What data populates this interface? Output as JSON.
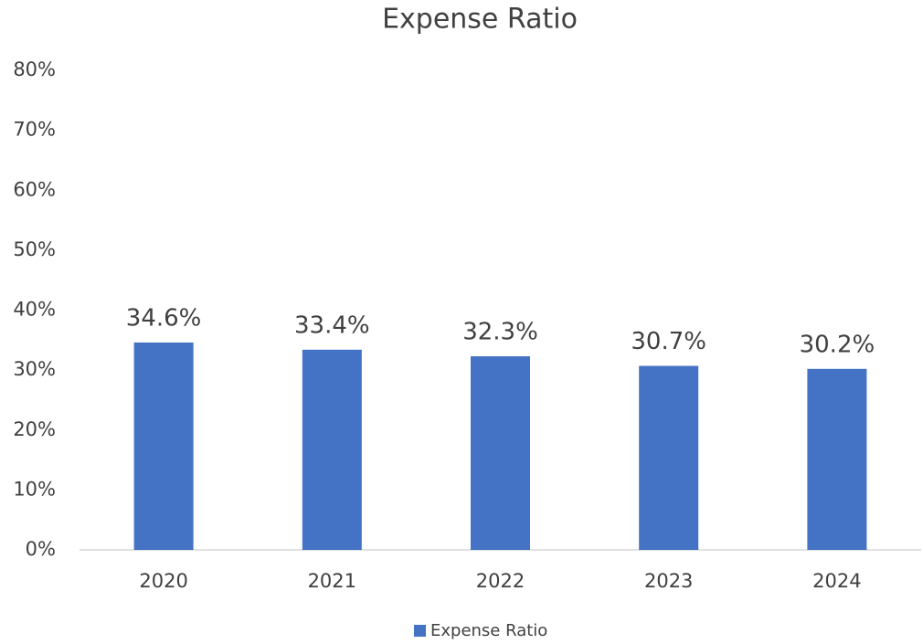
{
  "chart_data": {
    "type": "bar",
    "title": "Expense Ratio",
    "categories": [
      "2020",
      "2021",
      "2022",
      "2023",
      "2024"
    ],
    "series": [
      {
        "name": "Expense Ratio",
        "color": "#4472c4",
        "values": [
          34.6,
          33.4,
          32.3,
          30.7,
          30.2
        ],
        "value_labels": [
          "34.6%",
          "33.4%",
          "32.3%",
          "30.7%",
          "30.2%"
        ]
      }
    ],
    "ylim": [
      0,
      80
    ],
    "yticks": [
      {
        "value": 0,
        "label": "0%"
      },
      {
        "value": 10,
        "label": "10%"
      },
      {
        "value": 20,
        "label": "20%"
      },
      {
        "value": 30,
        "label": "30%"
      },
      {
        "value": 40,
        "label": "40%"
      },
      {
        "value": 50,
        "label": "50%"
      },
      {
        "value": 60,
        "label": "60%"
      },
      {
        "value": 70,
        "label": "70%"
      },
      {
        "value": 80,
        "label": "80%"
      }
    ],
    "grid": false,
    "legend": "bottom"
  }
}
